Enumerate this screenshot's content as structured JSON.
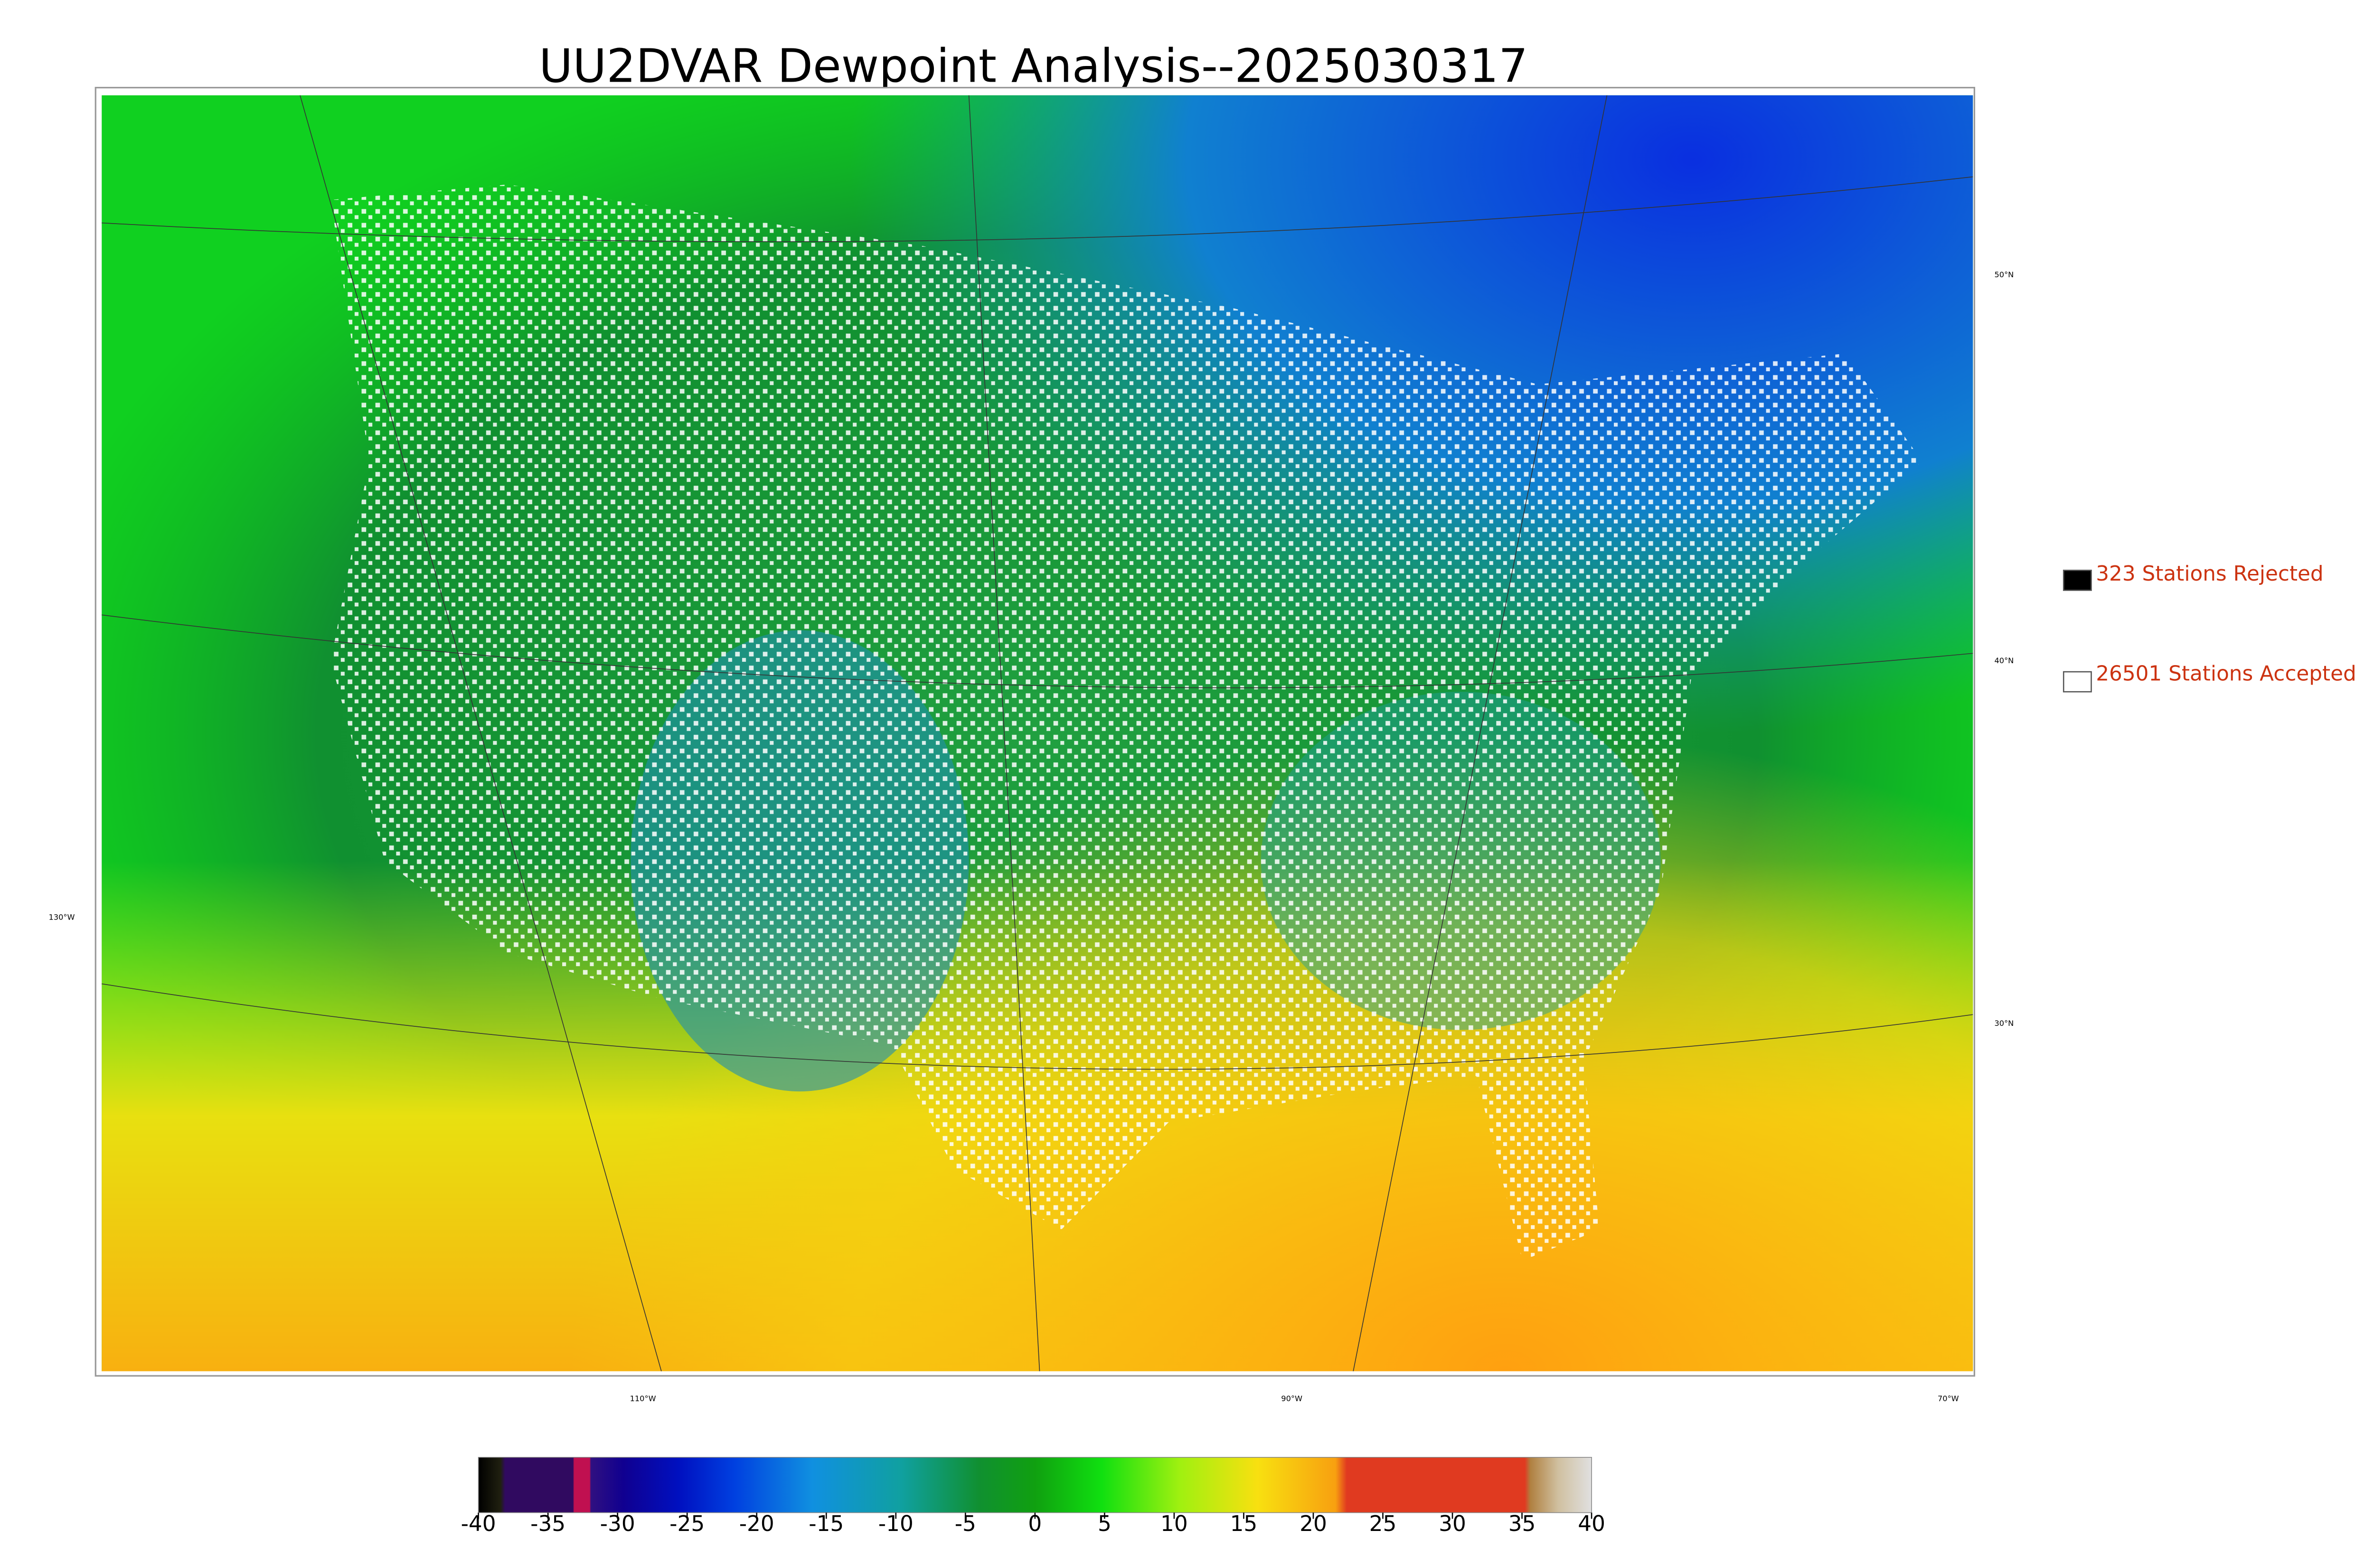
{
  "title": "UU2DVAR Dewpoint Analysis--2025030317",
  "map": {
    "lat_labels": [
      "50°N",
      "40°N",
      "30°N"
    ],
    "lon_labels": [
      "130°W",
      "110°W",
      "90°W",
      "70°W"
    ]
  },
  "legend": [
    {
      "label": "323 Stations Rejected",
      "color": "#000000"
    },
    {
      "label": "26501 Stations Accepted",
      "color": "#ffffff"
    }
  ],
  "colorbar": {
    "lim": [
      -40,
      40
    ],
    "ticks": [
      -40,
      -35,
      -30,
      -25,
      -20,
      -15,
      -10,
      -5,
      0,
      5,
      10,
      15,
      20,
      25,
      30,
      35,
      40
    ]
  }
}
